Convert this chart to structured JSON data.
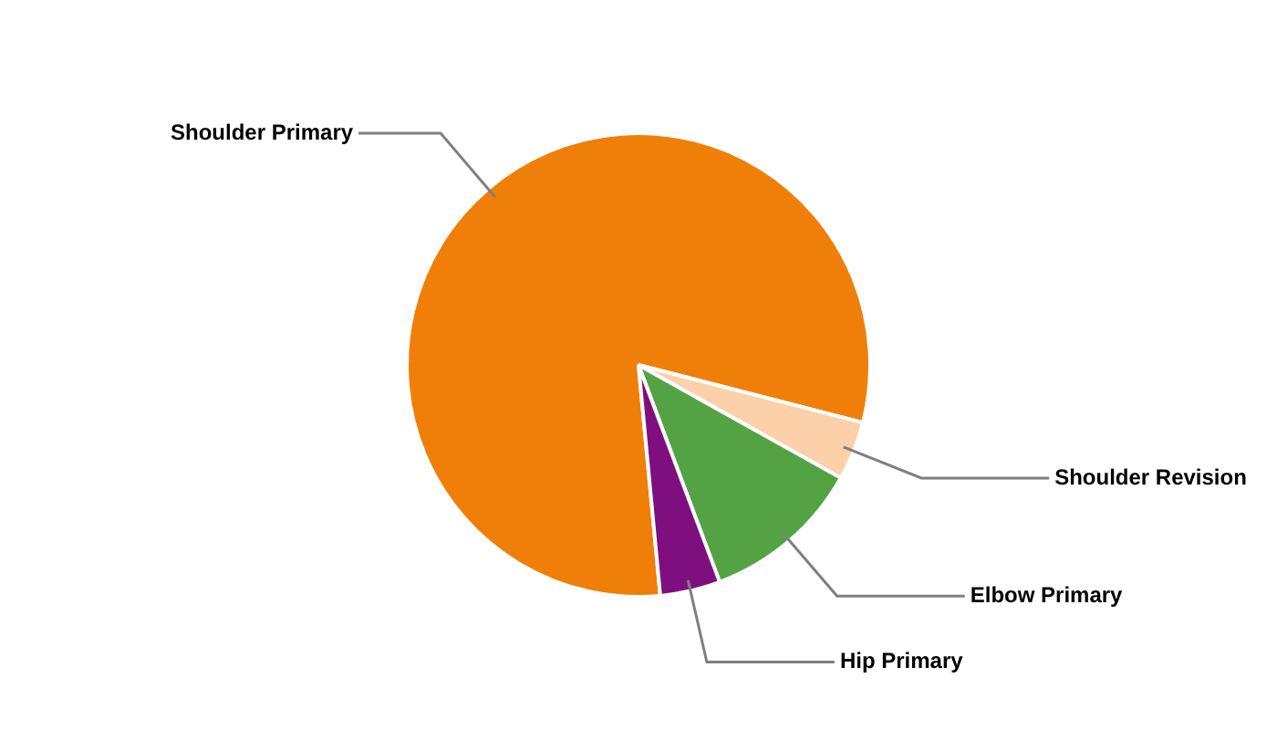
{
  "chart_data": {
    "type": "pie",
    "categories": [
      "Shoulder Primary",
      "Shoulder Revision",
      "Elbow Primary",
      "Hip Primary"
    ],
    "values": [
      80.5,
      4.1,
      11.2,
      4.2
    ],
    "colors": [
      "#f07f09",
      "#fcd0a8",
      "#53a345",
      "#7f0f7e"
    ],
    "legend": false
  }
}
